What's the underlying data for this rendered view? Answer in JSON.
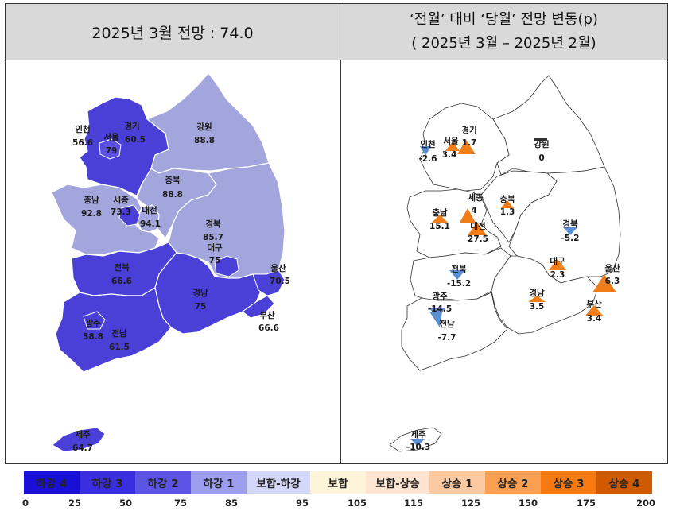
{
  "header": {
    "left_title": "2025년 3월 전망 : 74.0",
    "right_title_line1": "‘전월’ 대비 ‘당월’ 전망 변동(p)",
    "right_title_line2": "( 2025년 3월 –   2025년 2월)"
  },
  "left_map": {
    "regions": [
      {
        "name": "인천",
        "value": "56.6",
        "color": "#4a3fd6"
      },
      {
        "name": "경기",
        "value": "60.5",
        "color": "#4a3fd6"
      },
      {
        "name": "서울",
        "value": "79",
        "color": "#4a3fd6"
      },
      {
        "name": "강원",
        "value": "88.8",
        "color": "#a3a6dc"
      },
      {
        "name": "충북",
        "value": "88.8",
        "color": "#a3a6dc"
      },
      {
        "name": "충남",
        "value": "92.8",
        "color": "#a3a6dc"
      },
      {
        "name": "세종",
        "value": "73.3",
        "color": "#4a3fd6"
      },
      {
        "name": "대전",
        "value": "94.1",
        "color": "#a3a6dc"
      },
      {
        "name": "경북",
        "value": "85.7",
        "color": "#a3a6dc"
      },
      {
        "name": "대구",
        "value": "75",
        "color": "#4a3fd6"
      },
      {
        "name": "울산",
        "value": "70.5",
        "color": "#4a3fd6"
      },
      {
        "name": "전북",
        "value": "66.6",
        "color": "#4a3fd6"
      },
      {
        "name": "경남",
        "value": "75",
        "color": "#4a3fd6"
      },
      {
        "name": "부산",
        "value": "66.6",
        "color": "#4a3fd6"
      },
      {
        "name": "광주",
        "value": "58.8",
        "color": "#4a3fd6"
      },
      {
        "name": "전남",
        "value": "61.5",
        "color": "#4a3fd6"
      },
      {
        "name": "제주",
        "value": "64.7",
        "color": "#4a3fd6"
      }
    ]
  },
  "right_map": {
    "regions": [
      {
        "name": "인천",
        "value": "-2.6",
        "marker": "down",
        "color": "#5b8fd1"
      },
      {
        "name": "서울",
        "value": "3.4",
        "marker": "up",
        "color": "#f07d17"
      },
      {
        "name": "경기",
        "value": "1.7",
        "marker": "up",
        "color": "#f07d17"
      },
      {
        "name": "강원",
        "value": "0",
        "marker": "flat",
        "color": "#333333"
      },
      {
        "name": "세종",
        "value": "4",
        "marker": "up",
        "color": "#f07d17"
      },
      {
        "name": "충북",
        "value": "1.3",
        "marker": "up",
        "color": "#f07d17"
      },
      {
        "name": "충남",
        "value": "15.1",
        "marker": "up",
        "color": "#f07d17"
      },
      {
        "name": "대전",
        "value": "27.5",
        "marker": "up",
        "color": "#f07d17"
      },
      {
        "name": "경북",
        "value": "-5.2",
        "marker": "down",
        "color": "#5b8fd1"
      },
      {
        "name": "대구",
        "value": "2.3",
        "marker": "up",
        "color": "#f07d17"
      },
      {
        "name": "울산",
        "value": "6.3",
        "marker": "up",
        "color": "#f07d17"
      },
      {
        "name": "전북",
        "value": "-15.2",
        "marker": "down",
        "color": "#5b8fd1"
      },
      {
        "name": "광주",
        "value": "-14.5",
        "marker": "down",
        "color": "#5b8fd1"
      },
      {
        "name": "경남",
        "value": "3.5",
        "marker": "up",
        "color": "#f07d17"
      },
      {
        "name": "부산",
        "value": "3.4",
        "marker": "up",
        "color": "#f07d17"
      },
      {
        "name": "전남",
        "value": "-7.7",
        "marker": "down",
        "color": "#5b8fd1"
      },
      {
        "name": "제주",
        "value": "-10.3",
        "marker": "down",
        "color": "#5b8fd1"
      }
    ]
  },
  "legend": {
    "categories": [
      {
        "label": "하강 4",
        "color": "#1a0fd6"
      },
      {
        "label": "하강 3",
        "color": "#3a2fe0"
      },
      {
        "label": "하강 2",
        "color": "#5b54e6"
      },
      {
        "label": "하강 1",
        "color": "#9e9ef0"
      },
      {
        "label": "보합-하강",
        "color": "#d3d8fb"
      },
      {
        "label": "보합",
        "color": "#fdf4d9"
      },
      {
        "label": "보합-상승",
        "color": "#fde5d2"
      },
      {
        "label": "상승 1",
        "color": "#fcc9a0"
      },
      {
        "label": "상승 2",
        "color": "#fb9f52"
      },
      {
        "label": "상승 3",
        "color": "#f77a10"
      },
      {
        "label": "상승 4",
        "color": "#d05a00"
      }
    ],
    "ticks": [
      "0",
      "25",
      "50",
      "75",
      "85",
      "95",
      "105",
      "115",
      "125",
      "150",
      "175",
      "200"
    ]
  }
}
